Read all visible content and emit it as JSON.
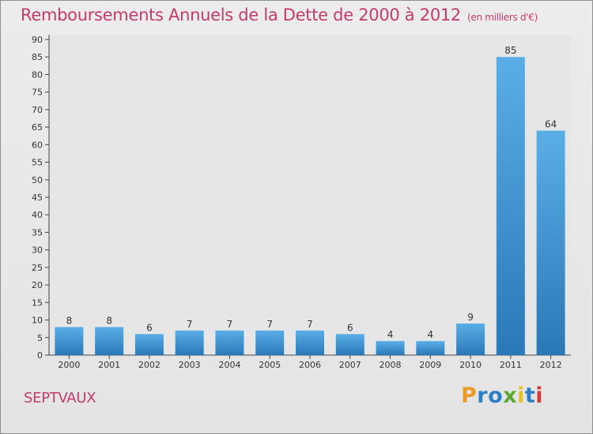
{
  "chart_data": {
    "type": "bar",
    "title": "Remboursements Annuels de la Dette de 2000 à 2012",
    "unit_note": "(en milliers d'€)",
    "categories": [
      "2000",
      "2001",
      "2002",
      "2003",
      "2004",
      "2005",
      "2006",
      "2007",
      "2008",
      "2009",
      "2010",
      "2011",
      "2012"
    ],
    "values": [
      8,
      8,
      6,
      7,
      7,
      7,
      7,
      6,
      4,
      4,
      9,
      85,
      64
    ],
    "ylim": [
      0,
      90
    ],
    "yticks": [
      0,
      5,
      10,
      15,
      20,
      25,
      30,
      35,
      40,
      45,
      50,
      55,
      60,
      65,
      70,
      75,
      80,
      85,
      90
    ],
    "grid": false,
    "bar_color_top": "#5aaee6",
    "bar_color_bottom": "#2a78b8"
  },
  "footer": {
    "city": "SEPTVAUX",
    "logo_letters": [
      "P",
      "r",
      "o",
      "x",
      "i",
      "t",
      "i"
    ],
    "logo_colors": [
      "#e89a2c",
      "#2d7fc4",
      "#2d7fc4",
      "#5aa832",
      "#e2c12a",
      "#2d7fc4",
      "#d23a3a"
    ]
  }
}
